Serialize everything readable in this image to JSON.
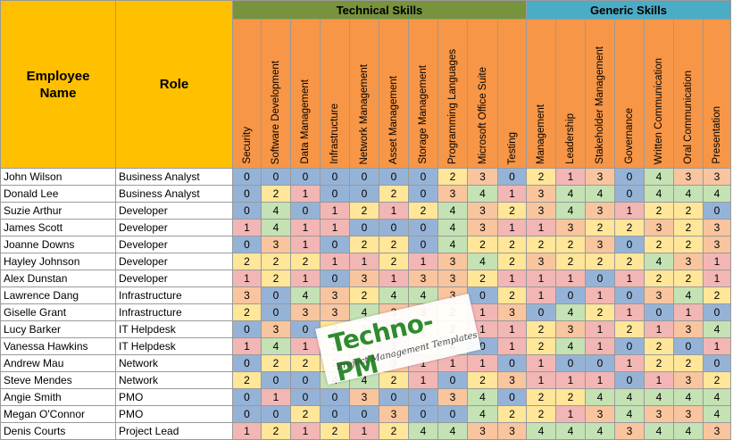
{
  "headers": {
    "employee_name": "Employee Name",
    "role": "Role",
    "technical_skills": "Technical Skills",
    "generic_skills": "Generic Skills"
  },
  "technical_skills": [
    "Security",
    "Software Development",
    "Data Management",
    "Infrastructure",
    "Network Management",
    "Asset Management",
    "Storage Management",
    "Programming Languages",
    "Microsoft Office Suite",
    "Testing"
  ],
  "generic_skills": [
    "Management",
    "Leadership",
    "Stakeholder Management",
    "Governance",
    "Written Communication",
    "Oral Communication",
    "Presentation"
  ],
  "employees": [
    {
      "name": "John Wilson",
      "role": "Business Analyst",
      "scores": [
        0,
        0,
        0,
        0,
        0,
        0,
        0,
        2,
        3,
        0,
        2,
        1,
        3,
        0,
        4,
        3,
        3
      ]
    },
    {
      "name": "Donald Lee",
      "role": "Business Analyst",
      "scores": [
        0,
        2,
        1,
        0,
        0,
        2,
        0,
        3,
        4,
        1,
        3,
        4,
        4,
        0,
        4,
        4,
        4
      ]
    },
    {
      "name": "Suzie Arthur",
      "role": "Developer",
      "scores": [
        0,
        4,
        0,
        1,
        2,
        1,
        2,
        4,
        3,
        2,
        3,
        4,
        3,
        1,
        2,
        2,
        0
      ]
    },
    {
      "name": "James Scott",
      "role": "Developer",
      "scores": [
        1,
        4,
        1,
        1,
        0,
        0,
        0,
        4,
        3,
        1,
        1,
        3,
        2,
        2,
        3,
        2,
        3
      ]
    },
    {
      "name": "Joanne Downs",
      "role": "Developer",
      "scores": [
        0,
        3,
        1,
        0,
        2,
        2,
        0,
        4,
        2,
        2,
        2,
        2,
        3,
        0,
        2,
        2,
        3
      ]
    },
    {
      "name": "Hayley Johnson",
      "role": "Developer",
      "scores": [
        2,
        2,
        2,
        1,
        1,
        2,
        1,
        3,
        4,
        2,
        3,
        2,
        2,
        2,
        4,
        3,
        1
      ]
    },
    {
      "name": "Alex Dunstan",
      "role": "Developer",
      "scores": [
        1,
        2,
        1,
        0,
        3,
        1,
        3,
        3,
        2,
        1,
        1,
        1,
        0,
        1,
        2,
        2,
        1
      ]
    },
    {
      "name": "Lawrence Dang",
      "role": "Infrastructure",
      "scores": [
        3,
        0,
        4,
        3,
        2,
        4,
        4,
        3,
        0,
        2,
        1,
        0,
        1,
        0,
        3,
        4,
        2
      ]
    },
    {
      "name": "Giselle Grant",
      "role": "Infrastructure",
      "scores": [
        2,
        0,
        3,
        3,
        4,
        3,
        3,
        2,
        1,
        3,
        0,
        4,
        2,
        1,
        0,
        1,
        0
      ]
    },
    {
      "name": "Lucy Barker",
      "role": "IT Helpdesk",
      "scores": [
        0,
        3,
        0,
        2,
        2,
        1,
        2,
        2,
        1,
        1,
        2,
        3,
        1,
        2,
        1,
        3,
        4
      ]
    },
    {
      "name": "Vanessa Hawkins",
      "role": "IT Helpdesk",
      "scores": [
        1,
        4,
        1,
        2,
        2,
        1,
        2,
        4,
        0,
        1,
        2,
        4,
        1,
        0,
        2,
        0,
        1
      ]
    },
    {
      "name": "Andrew Mau",
      "role": "Network",
      "scores": [
        0,
        2,
        2,
        2,
        1,
        3,
        1,
        1,
        1,
        0,
        1,
        0,
        0,
        1,
        2,
        2,
        0
      ]
    },
    {
      "name": "Steve Mendes",
      "role": "Network",
      "scores": [
        2,
        0,
        0,
        4,
        4,
        2,
        1,
        0,
        2,
        3,
        1,
        1,
        1,
        0,
        1,
        3,
        2
      ]
    },
    {
      "name": "Angie Smith",
      "role": "PMO",
      "scores": [
        0,
        1,
        0,
        0,
        3,
        0,
        0,
        3,
        4,
        0,
        2,
        2,
        4,
        4,
        4,
        4,
        4
      ]
    },
    {
      "name": "Megan O'Connor",
      "role": "PMO",
      "scores": [
        0,
        0,
        2,
        0,
        0,
        3,
        0,
        0,
        4,
        2,
        2,
        1,
        3,
        4,
        3,
        3,
        4
      ]
    },
    {
      "name": "Denis Courts",
      "role": "Project Lead",
      "scores": [
        1,
        2,
        1,
        2,
        1,
        2,
        4,
        4,
        3,
        3,
        4,
        4,
        4,
        3,
        4,
        4,
        3
      ]
    }
  ],
  "score_colors": {
    "0": "#95b3d7",
    "1": "#f2b6b4",
    "2": "#ffe699",
    "3": "#f8c59f",
    "4": "#c4e2b4"
  },
  "group_colors": {
    "technical": "#77933c",
    "generic": "#4bacc6",
    "header": "#f79646",
    "name_role": "#ffc000"
  },
  "watermark": {
    "brand": "Techno-PM",
    "tagline": "Project Management Templates"
  }
}
